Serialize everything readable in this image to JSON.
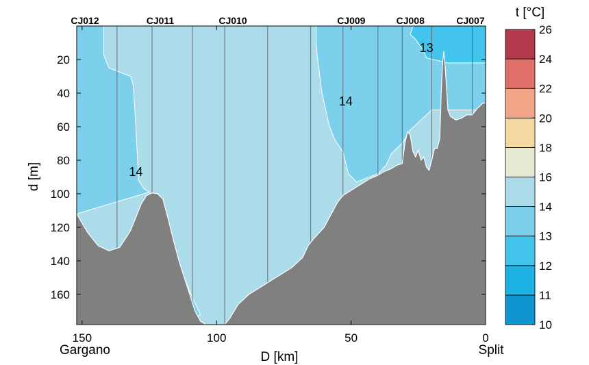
{
  "chart_data": {
    "type": "contour-section",
    "xlabel": "D [km]",
    "ylabel": "d [m]",
    "x_end_labels": {
      "left": "Gargano",
      "right": "Split"
    },
    "xlim": [
      152,
      0
    ],
    "ylim": [
      0,
      178
    ],
    "x_ticks": [
      150,
      100,
      50,
      0
    ],
    "y_ticks": [
      20,
      40,
      60,
      80,
      100,
      120,
      140,
      160
    ],
    "stations": [
      {
        "name": "CJ012",
        "x": 152
      },
      {
        "name": "CJ011",
        "x": 124
      },
      {
        "name": "CJ010",
        "x": 97
      },
      {
        "name": "CJ009",
        "x": 53
      },
      {
        "name": "CJ008",
        "x": 31
      },
      {
        "name": "CJ007",
        "x": 5
      }
    ],
    "cast_lines_x": [
      152,
      137,
      124,
      109,
      97,
      81,
      65,
      53,
      40,
      31,
      20,
      5
    ],
    "colorbar": {
      "title": "t [°C]",
      "levels": [
        10,
        11,
        12,
        13,
        14,
        16,
        18,
        20,
        22,
        24,
        26
      ],
      "colors": [
        "#0f95d0",
        "#1db1e4",
        "#43c4ec",
        "#7dd0ec",
        "#acdcea",
        "#e6ebd3",
        "#f6d8a3",
        "#f2a689",
        "#e07068",
        "#b33a4c"
      ]
    },
    "contour_labels": [
      {
        "text": "14",
        "x": 130,
        "y": 87
      },
      {
        "text": "14",
        "x": 52,
        "y": 45
      },
      {
        "text": "13",
        "x": 22,
        "y": 13
      }
    ],
    "regions": [
      {
        "label": "13-14",
        "color_index": 3,
        "points": [
          [
            152,
            0
          ],
          [
            142,
            0
          ],
          [
            142,
            17
          ],
          [
            140,
            25
          ],
          [
            132,
            30
          ],
          [
            131,
            35
          ],
          [
            130,
            60
          ],
          [
            129,
            92
          ],
          [
            127,
            97
          ],
          [
            125,
            99
          ],
          [
            152,
            112
          ]
        ]
      },
      {
        "label": "13-14",
        "color_index": 3,
        "points": [
          [
            63,
            0
          ],
          [
            0,
            0
          ],
          [
            0,
            50
          ],
          [
            20,
            50
          ],
          [
            28,
            62
          ],
          [
            31,
            70
          ],
          [
            35,
            76
          ],
          [
            37,
            83
          ],
          [
            40,
            88
          ],
          [
            48,
            93
          ],
          [
            51,
            88
          ],
          [
            53,
            75
          ],
          [
            56,
            68
          ],
          [
            58,
            60
          ],
          [
            60,
            46
          ],
          [
            61,
            38
          ],
          [
            62,
            25
          ],
          [
            62.6,
            18
          ],
          [
            63,
            10
          ]
        ]
      },
      {
        "label": "12-13",
        "color_index": 2,
        "points": [
          [
            27,
            0
          ],
          [
            0,
            0
          ],
          [
            0,
            22
          ],
          [
            14,
            22
          ],
          [
            22,
            19
          ],
          [
            23,
            15
          ],
          [
            26,
            8
          ],
          [
            28,
            5
          ]
        ]
      },
      {
        "label": "13-14",
        "color_index": 3,
        "points": [
          [
            112,
            150
          ],
          [
            109,
            162
          ],
          [
            106,
            172
          ],
          [
            109,
            175
          ],
          [
            111,
            170
          ],
          [
            112,
            162
          ]
        ]
      }
    ],
    "bathymetry": [
      [
        152,
        112
      ],
      [
        148,
        123
      ],
      [
        144,
        131
      ],
      [
        140,
        134
      ],
      [
        136,
        132
      ],
      [
        132,
        122
      ],
      [
        128,
        106
      ],
      [
        126,
        101
      ],
      [
        124,
        99.5
      ],
      [
        122,
        100
      ],
      [
        120,
        103
      ],
      [
        118,
        115
      ],
      [
        116,
        128
      ],
      [
        114,
        140
      ],
      [
        112,
        150
      ],
      [
        110,
        160
      ],
      [
        108,
        170
      ],
      [
        106,
        176
      ],
      [
        104,
        178
      ],
      [
        100,
        178
      ],
      [
        97,
        178
      ],
      [
        95,
        174
      ],
      [
        92,
        166
      ],
      [
        88,
        160
      ],
      [
        84,
        156
      ],
      [
        80,
        152
      ],
      [
        76,
        148
      ],
      [
        72,
        144
      ],
      [
        68,
        138
      ],
      [
        66,
        131
      ],
      [
        64,
        127
      ],
      [
        60,
        120
      ],
      [
        58,
        114
      ],
      [
        55,
        105
      ],
      [
        53,
        101
      ],
      [
        50,
        98
      ],
      [
        46,
        94
      ],
      [
        43,
        91
      ],
      [
        40,
        89
      ],
      [
        38,
        87
      ],
      [
        35,
        85
      ],
      [
        33,
        83
      ],
      [
        31,
        82
      ],
      [
        30,
        70
      ],
      [
        29,
        63
      ],
      [
        28,
        65
      ],
      [
        27,
        75
      ],
      [
        26,
        78
      ],
      [
        25,
        74
      ],
      [
        24,
        80
      ],
      [
        23,
        78
      ],
      [
        22,
        84
      ],
      [
        21,
        86
      ],
      [
        20,
        80
      ],
      [
        19,
        73
      ],
      [
        18,
        73
      ],
      [
        17,
        67
      ],
      [
        16.5,
        40
      ],
      [
        16,
        22
      ],
      [
        15.5,
        15
      ],
      [
        15,
        25
      ],
      [
        14,
        50
      ],
      [
        13,
        54
      ],
      [
        11,
        56
      ],
      [
        9,
        55
      ],
      [
        7,
        53
      ],
      [
        5,
        53
      ],
      [
        3,
        49
      ],
      [
        1,
        46
      ],
      [
        0,
        46
      ]
    ]
  }
}
